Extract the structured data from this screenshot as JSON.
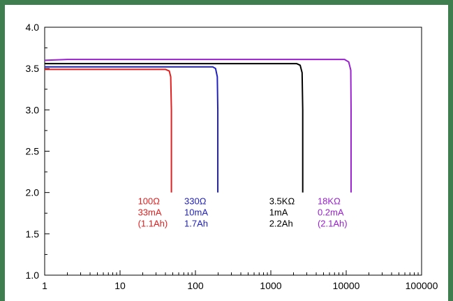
{
  "chart_data": {
    "type": "line",
    "title": "",
    "xlabel": "",
    "ylabel": "",
    "x_scale": "log",
    "xlim": [
      1,
      100000
    ],
    "ylim": [
      1.0,
      4.0
    ],
    "grid": false,
    "x_ticks": [
      "1",
      "10",
      "100",
      "1000",
      "10000",
      "100000"
    ],
    "y_ticks": [
      "1.0",
      "1.5",
      "2.0",
      "2.5",
      "3.0",
      "3.5",
      "4.0"
    ],
    "series": [
      {
        "color": "#e02020",
        "label_lines": [
          "100Ω",
          "33mA",
          "(1.1Ah)"
        ],
        "points": [
          [
            1,
            3.49
          ],
          [
            40,
            3.49
          ],
          [
            45,
            3.47
          ],
          [
            47,
            3.4
          ],
          [
            48,
            3.0
          ],
          [
            48,
            2.0
          ]
        ]
      },
      {
        "color": "#2020c0",
        "label_lines": [
          "330Ω",
          "10mA",
          "1.7Ah"
        ],
        "points": [
          [
            1,
            3.52
          ],
          [
            170,
            3.52
          ],
          [
            185,
            3.5
          ],
          [
            195,
            3.4
          ],
          [
            198,
            3.0
          ],
          [
            198,
            2.0
          ]
        ]
      },
      {
        "color": "#000000",
        "label_lines": [
          "3.5KΩ",
          "1mA",
          "2.2Ah"
        ],
        "points": [
          [
            1,
            3.56
          ],
          [
            2200,
            3.56
          ],
          [
            2450,
            3.54
          ],
          [
            2600,
            3.45
          ],
          [
            2650,
            3.0
          ],
          [
            2650,
            2.0
          ]
        ]
      },
      {
        "color": "#9a20d0",
        "label_lines": [
          "18KΩ",
          "0.2mA",
          "(2.1Ah)"
        ],
        "points": [
          [
            1,
            3.6
          ],
          [
            2,
            3.61
          ],
          [
            9500,
            3.61
          ],
          [
            10800,
            3.58
          ],
          [
            11500,
            3.48
          ],
          [
            11600,
            3.0
          ],
          [
            11600,
            2.0
          ]
        ]
      }
    ]
  }
}
